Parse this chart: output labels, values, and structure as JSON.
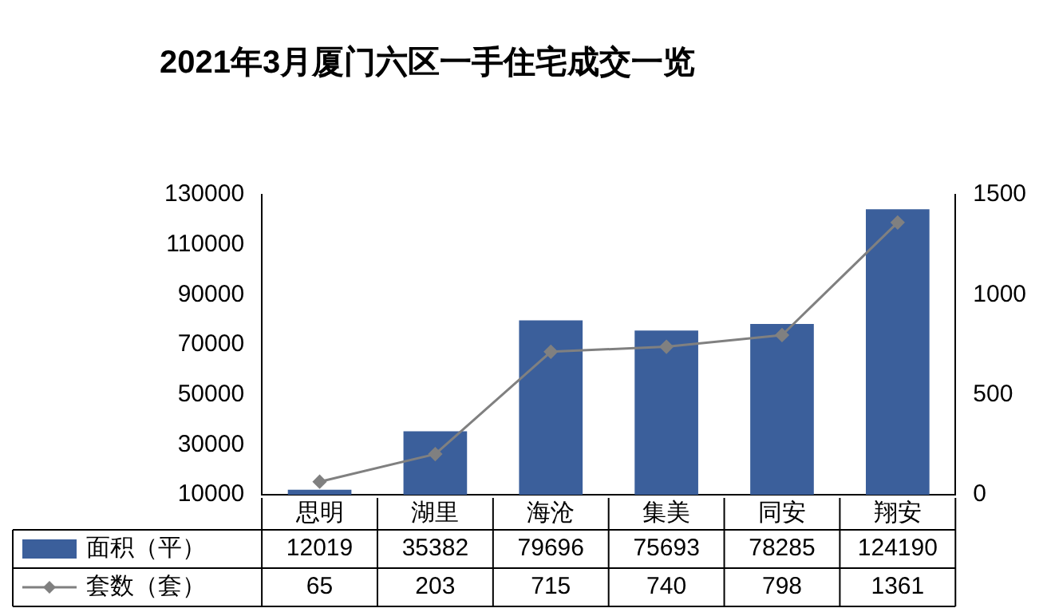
{
  "chart_data": {
    "type": "bar",
    "title": "2021年3月厦门六区一手住宅成交一览",
    "categories": [
      "思明",
      "湖里",
      "海沧",
      "集美",
      "同安",
      "翔安"
    ],
    "series": [
      {
        "name": "套数（套）",
        "type": "line",
        "axis": "y2",
        "color": "#808080",
        "marker": "diamond",
        "values": [
          65,
          203,
          715,
          740,
          798,
          1361
        ]
      },
      {
        "name": "面积（平）",
        "color": "#3b5f9b",
        "values": [
          12019,
          35382,
          79696,
          75693,
          78285,
          124190
        ]
      }
    ],
    "ylim": [
      10000,
      130000
    ],
    "yticks": [
      10000,
      30000,
      50000,
      70000,
      90000,
      110000,
      130000
    ],
    "y2lim": [
      0,
      1500
    ],
    "y2ticks": [
      0,
      500,
      1000,
      1500
    ],
    "data_labels": true,
    "legend": "bottom",
    "grid": false
  }
}
